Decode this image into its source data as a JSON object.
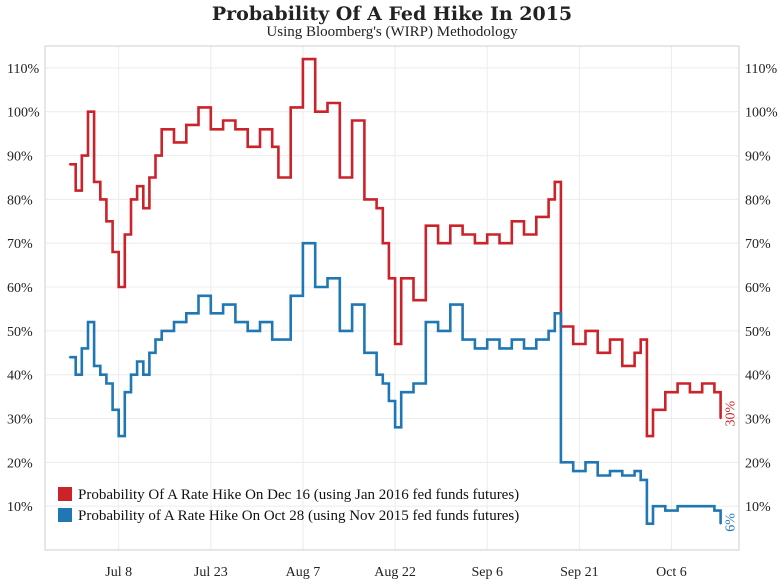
{
  "chart_data": {
    "type": "line",
    "title": "Probability Of A Fed Hike In 2015",
    "subtitle": "Using Bloomberg's (WIRP) Methodology",
    "xlabel": "",
    "ylabel": "",
    "ylim": [
      0,
      115
    ],
    "xlim": [
      "2015-06-26",
      "2015-10-17"
    ],
    "x_ticks": [
      {
        "date": "2015-07-08",
        "label": "Jul 8"
      },
      {
        "date": "2015-07-23",
        "label": "Jul 23"
      },
      {
        "date": "2015-08-07",
        "label": "Aug 7"
      },
      {
        "date": "2015-08-22",
        "label": "Aug 22"
      },
      {
        "date": "2015-09-06",
        "label": "Sep 6"
      },
      {
        "date": "2015-09-21",
        "label": "Sep 21"
      },
      {
        "date": "2015-10-06",
        "label": "Oct 6"
      }
    ],
    "y_ticks": [
      10,
      20,
      30,
      40,
      50,
      60,
      70,
      80,
      90,
      100,
      110
    ],
    "y_tick_labels": [
      "10%",
      "20%",
      "30%",
      "40%",
      "50%",
      "60%",
      "70%",
      "80%",
      "90%",
      "100%",
      "110%"
    ],
    "legend_position": "bottom-left",
    "series": [
      {
        "name": "Probability Of A Rate Hike On Dec 16 (using Jan 2016 fed funds futures)",
        "color": "#cc2229",
        "end_label": "30%",
        "points": [
          [
            "2015-06-30",
            88
          ],
          [
            "2015-07-01",
            82
          ],
          [
            "2015-07-02",
            90
          ],
          [
            "2015-07-03",
            100
          ],
          [
            "2015-07-04",
            84
          ],
          [
            "2015-07-05",
            80
          ],
          [
            "2015-07-06",
            75
          ],
          [
            "2015-07-07",
            68
          ],
          [
            "2015-07-08",
            60
          ],
          [
            "2015-07-09",
            72
          ],
          [
            "2015-07-10",
            80
          ],
          [
            "2015-07-11",
            83
          ],
          [
            "2015-07-12",
            78
          ],
          [
            "2015-07-13",
            85
          ],
          [
            "2015-07-14",
            90
          ],
          [
            "2015-07-15",
            96
          ],
          [
            "2015-07-17",
            93
          ],
          [
            "2015-07-19",
            97
          ],
          [
            "2015-07-21",
            101
          ],
          [
            "2015-07-23",
            96
          ],
          [
            "2015-07-25",
            98
          ],
          [
            "2015-07-27",
            96
          ],
          [
            "2015-07-29",
            92
          ],
          [
            "2015-07-31",
            96
          ],
          [
            "2015-08-02",
            92
          ],
          [
            "2015-08-03",
            85
          ],
          [
            "2015-08-05",
            101
          ],
          [
            "2015-08-07",
            112
          ],
          [
            "2015-08-09",
            100
          ],
          [
            "2015-08-11",
            102
          ],
          [
            "2015-08-13",
            85
          ],
          [
            "2015-08-15",
            98
          ],
          [
            "2015-08-17",
            80
          ],
          [
            "2015-08-19",
            78
          ],
          [
            "2015-08-20",
            70
          ],
          [
            "2015-08-21",
            62
          ],
          [
            "2015-08-22",
            47
          ],
          [
            "2015-08-23",
            62
          ],
          [
            "2015-08-25",
            57
          ],
          [
            "2015-08-27",
            74
          ],
          [
            "2015-08-29",
            70
          ],
          [
            "2015-08-31",
            74
          ],
          [
            "2015-09-02",
            72
          ],
          [
            "2015-09-04",
            70
          ],
          [
            "2015-09-06",
            72
          ],
          [
            "2015-09-08",
            70
          ],
          [
            "2015-09-10",
            75
          ],
          [
            "2015-09-12",
            72
          ],
          [
            "2015-09-14",
            76
          ],
          [
            "2015-09-16",
            80
          ],
          [
            "2015-09-17",
            84
          ],
          [
            "2015-09-18",
            51
          ],
          [
            "2015-09-20",
            47
          ],
          [
            "2015-09-22",
            50
          ],
          [
            "2015-09-24",
            45
          ],
          [
            "2015-09-26",
            48
          ],
          [
            "2015-09-28",
            42
          ],
          [
            "2015-09-30",
            45
          ],
          [
            "2015-10-01",
            48
          ],
          [
            "2015-10-02",
            26
          ],
          [
            "2015-10-03",
            32
          ],
          [
            "2015-10-05",
            36
          ],
          [
            "2015-10-07",
            38
          ],
          [
            "2015-10-09",
            36
          ],
          [
            "2015-10-11",
            38
          ],
          [
            "2015-10-13",
            36
          ],
          [
            "2015-10-14",
            30
          ]
        ]
      },
      {
        "name": "Probability of A Rate Hike On Oct 28 (using Nov 2015 fed funds futures)",
        "color": "#1f77b4",
        "end_label": "6%",
        "points": [
          [
            "2015-06-30",
            44
          ],
          [
            "2015-07-01",
            40
          ],
          [
            "2015-07-02",
            46
          ],
          [
            "2015-07-03",
            52
          ],
          [
            "2015-07-04",
            42
          ],
          [
            "2015-07-05",
            40
          ],
          [
            "2015-07-06",
            38
          ],
          [
            "2015-07-07",
            32
          ],
          [
            "2015-07-08",
            26
          ],
          [
            "2015-07-09",
            36
          ],
          [
            "2015-07-10",
            40
          ],
          [
            "2015-07-11",
            43
          ],
          [
            "2015-07-12",
            40
          ],
          [
            "2015-07-13",
            45
          ],
          [
            "2015-07-14",
            48
          ],
          [
            "2015-07-15",
            50
          ],
          [
            "2015-07-17",
            52
          ],
          [
            "2015-07-19",
            54
          ],
          [
            "2015-07-21",
            58
          ],
          [
            "2015-07-23",
            54
          ],
          [
            "2015-07-25",
            56
          ],
          [
            "2015-07-27",
            52
          ],
          [
            "2015-07-29",
            50
          ],
          [
            "2015-07-31",
            52
          ],
          [
            "2015-08-02",
            48
          ],
          [
            "2015-08-03",
            48
          ],
          [
            "2015-08-05",
            58
          ],
          [
            "2015-08-07",
            70
          ],
          [
            "2015-08-09",
            60
          ],
          [
            "2015-08-11",
            62
          ],
          [
            "2015-08-13",
            50
          ],
          [
            "2015-08-15",
            56
          ],
          [
            "2015-08-17",
            45
          ],
          [
            "2015-08-19",
            40
          ],
          [
            "2015-08-20",
            38
          ],
          [
            "2015-08-21",
            34
          ],
          [
            "2015-08-22",
            28
          ],
          [
            "2015-08-23",
            36
          ],
          [
            "2015-08-25",
            38
          ],
          [
            "2015-08-27",
            52
          ],
          [
            "2015-08-29",
            50
          ],
          [
            "2015-08-31",
            56
          ],
          [
            "2015-09-02",
            48
          ],
          [
            "2015-09-04",
            46
          ],
          [
            "2015-09-06",
            48
          ],
          [
            "2015-09-08",
            46
          ],
          [
            "2015-09-10",
            48
          ],
          [
            "2015-09-12",
            46
          ],
          [
            "2015-09-14",
            48
          ],
          [
            "2015-09-16",
            50
          ],
          [
            "2015-09-17",
            54
          ],
          [
            "2015-09-18",
            20
          ],
          [
            "2015-09-20",
            18
          ],
          [
            "2015-09-22",
            20
          ],
          [
            "2015-09-24",
            17
          ],
          [
            "2015-09-26",
            18
          ],
          [
            "2015-09-28",
            17
          ],
          [
            "2015-09-30",
            18
          ],
          [
            "2015-10-01",
            16
          ],
          [
            "2015-10-02",
            6
          ],
          [
            "2015-10-03",
            10
          ],
          [
            "2015-10-05",
            9
          ],
          [
            "2015-10-07",
            10
          ],
          [
            "2015-10-09",
            10
          ],
          [
            "2015-10-11",
            10
          ],
          [
            "2015-10-13",
            9
          ],
          [
            "2015-10-14",
            6
          ]
        ]
      }
    ]
  }
}
